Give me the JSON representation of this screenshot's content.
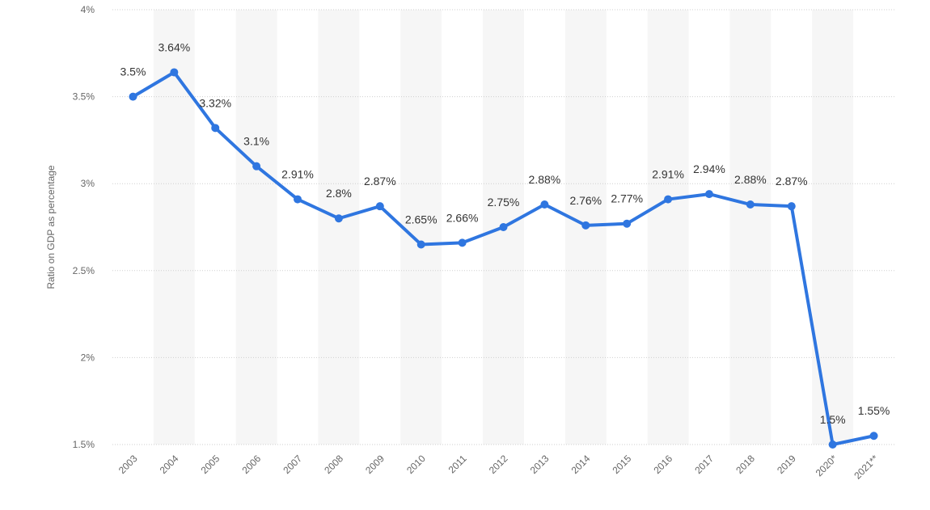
{
  "chart_data": {
    "type": "line",
    "y_label": "Ratio on GDP as percentage",
    "categories": [
      "2003",
      "2004",
      "2005",
      "2006",
      "2007",
      "2008",
      "2009",
      "2010",
      "2011",
      "2012",
      "2013",
      "2014",
      "2015",
      "2016",
      "2017",
      "2018",
      "2019",
      "2020*",
      "2021**"
    ],
    "series": [
      {
        "color": "#2f76e0",
        "values": [
          3.5,
          3.64,
          3.32,
          3.1,
          2.91,
          2.8,
          2.87,
          2.65,
          2.66,
          2.75,
          2.88,
          2.76,
          2.77,
          2.91,
          2.94,
          2.88,
          2.87,
          1.5,
          1.55
        ],
        "value_labels": [
          "3.5%",
          "3.64%",
          "3.32%",
          "3.1%",
          "2.91%",
          "2.8%",
          "2.87%",
          "2.65%",
          "2.66%",
          "2.75%",
          "2.88%",
          "2.76%",
          "2.77%",
          "2.91%",
          "2.94%",
          "2.88%",
          "2.87%",
          "1.5%",
          "1.55%"
        ]
      }
    ],
    "ylim": [
      1.5,
      4
    ],
    "yticks": [
      {
        "value": 1.5,
        "label": "1.5%"
      },
      {
        "value": 2,
        "label": "2%"
      },
      {
        "value": 2.5,
        "label": "2.5%"
      },
      {
        "value": 3,
        "label": "3%"
      },
      {
        "value": 3.5,
        "label": "3.5%"
      },
      {
        "value": 4,
        "label": "4%"
      }
    ],
    "grid": true
  }
}
